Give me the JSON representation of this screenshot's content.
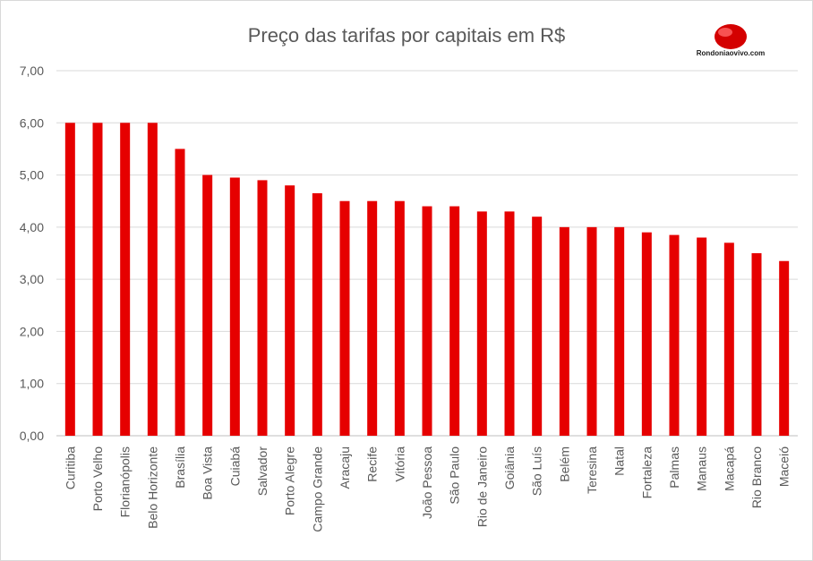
{
  "logo": {
    "text": "Rondoniaovivo.com"
  },
  "colors": {
    "bar": "#e60000",
    "grid": "#d9d9d9",
    "text": "#595959"
  },
  "chart_data": {
    "type": "bar",
    "title": "Preço das tarifas por capitais em R$",
    "xlabel": "",
    "ylabel": "",
    "ylim": [
      0,
      7
    ],
    "yticks": [
      "0,00",
      "1,00",
      "2,00",
      "3,00",
      "4,00",
      "5,00",
      "6,00",
      "7,00"
    ],
    "grid": true,
    "legend": "none",
    "categories": [
      "Curitiba",
      "Porto Velho",
      "Florianópolis",
      "Belo Horizonte",
      "Brasília",
      "Boa Vista",
      "Cuiabá",
      "Salvador",
      "Porto Alegre",
      "Campo Grande",
      "Aracaju",
      "Recife",
      "Vitória",
      "João Pessoa",
      "São Paulo",
      "Rio de Janeiro",
      "Goiânia",
      "São Luís",
      "Belém",
      "Teresina",
      "Natal",
      "Fortaleza",
      "Palmas",
      "Manaus",
      "Macapá",
      "Rio Branco",
      "Maceió"
    ],
    "values": [
      6.0,
      6.0,
      6.0,
      6.0,
      5.5,
      5.0,
      4.95,
      4.9,
      4.8,
      4.65,
      4.5,
      4.5,
      4.5,
      4.4,
      4.4,
      4.3,
      4.3,
      4.2,
      4.0,
      4.0,
      4.0,
      3.9,
      3.85,
      3.8,
      3.7,
      3.5,
      3.35
    ]
  }
}
